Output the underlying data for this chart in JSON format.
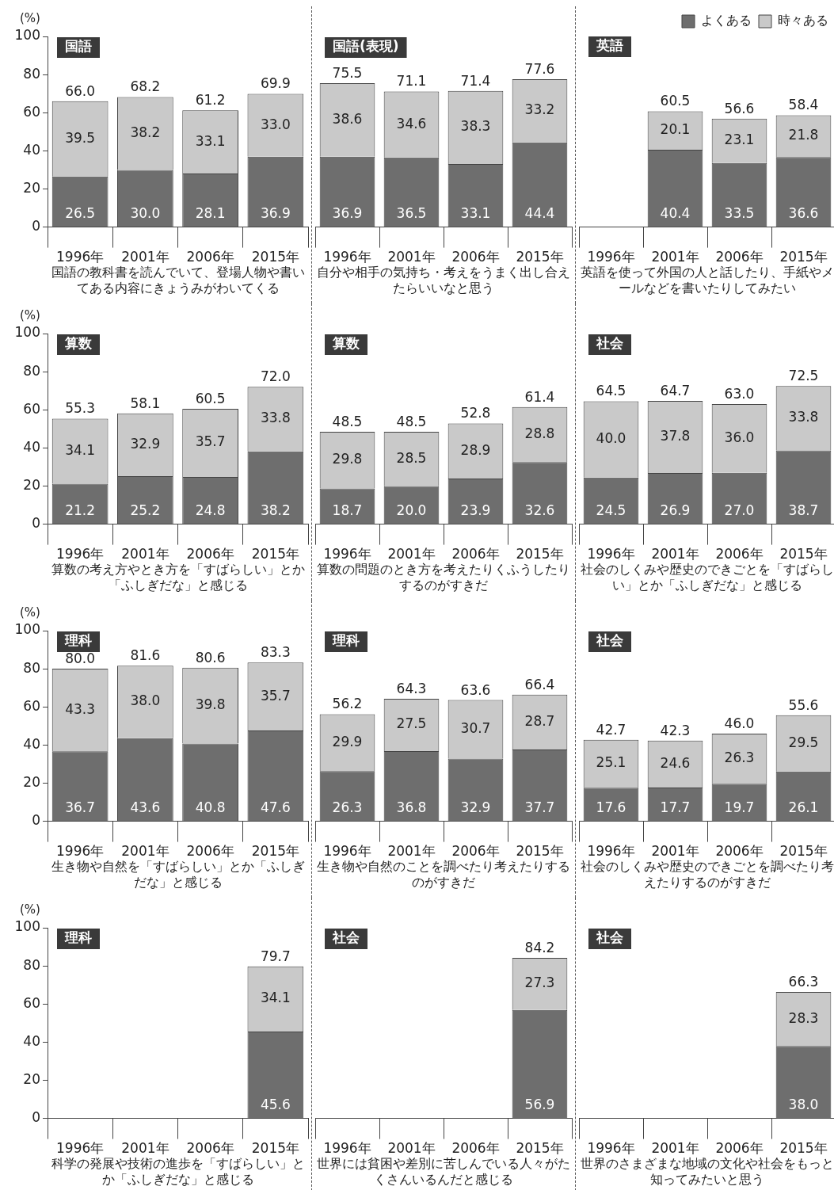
{
  "chart_data": [
    {
      "type": "bar",
      "stacked": true,
      "title": "国語",
      "ylabel": "(%)",
      "xlabel": "国語の教科書を読んでいて、登場人物や書いてある内容にきょうみがわいてくる",
      "categories": [
        "1996年",
        "2001年",
        "2006年",
        "2015年"
      ],
      "ylim": [
        0,
        100
      ],
      "yticks": [
        0,
        20,
        40,
        60,
        80,
        100
      ],
      "totals": [
        "66.0",
        "68.2",
        "61.2",
        "69.9"
      ],
      "series": [
        {
          "color": "#6e6e6e",
          "values": [
            26.5,
            30.0,
            28.1,
            36.9
          ],
          "value_labels": [
            "26.5",
            "30.0",
            "28.1",
            "36.9"
          ]
        },
        {
          "color": "#c9c9c9",
          "values": [
            39.5,
            38.2,
            33.1,
            33.0
          ],
          "value_labels": [
            "39.5",
            "38.2",
            "33.1",
            "33.0"
          ]
        }
      ]
    },
    {
      "type": "bar",
      "stacked": true,
      "title": "国語(表現)",
      "xlabel": "自分や相手の気持ち・考えをうまく出し合えたらいいなと思う",
      "categories": [
        "1996年",
        "2001年",
        "2006年",
        "2015年"
      ],
      "ylim": [
        0,
        100
      ],
      "tick_labels": "x",
      "totals": [
        "75.5",
        "71.1",
        "71.4",
        "77.6"
      ],
      "series": [
        {
          "color": "#6e6e6e",
          "values": [
            36.9,
            36.5,
            33.1,
            44.4
          ],
          "value_labels": [
            "36.9",
            "36.5",
            "33.1",
            "44.4"
          ]
        },
        {
          "color": "#c9c9c9",
          "values": [
            38.6,
            34.6,
            38.3,
            33.2
          ],
          "value_labels": [
            "38.6",
            "34.6",
            "38.3",
            "33.2"
          ]
        }
      ]
    },
    {
      "type": "bar",
      "stacked": true,
      "title": "英語",
      "xlabel": "英語を使って外国の人と話したり、手紙やメールなどを書いたりしてみたい",
      "categories": [
        "1996年",
        "2001年",
        "2006年",
        "2015年"
      ],
      "ylim": [
        0,
        100
      ],
      "tick_labels": "x",
      "legend": "top right",
      "totals": [
        null,
        "60.5",
        "56.6",
        "58.4"
      ],
      "series": [
        {
          "name": "よくある",
          "color": "#6e6e6e",
          "values": [
            null,
            40.4,
            33.5,
            36.6
          ],
          "value_labels": [
            null,
            "40.4",
            "33.5",
            "36.6"
          ]
        },
        {
          "name": "時々ある",
          "color": "#c9c9c9",
          "values": [
            null,
            20.1,
            23.1,
            21.8
          ],
          "value_labels": [
            null,
            "20.1",
            "23.1",
            "21.8"
          ]
        }
      ]
    },
    {
      "type": "bar",
      "stacked": true,
      "title": "算数",
      "ylabel": "(%)",
      "xlabel": "算数の考え方やとき方を「すばらしい」とか「ふしぎだな」と感じる",
      "categories": [
        "1996年",
        "2001年",
        "2006年",
        "2015年"
      ],
      "ylim": [
        0,
        100
      ],
      "yticks": [
        0,
        20,
        40,
        60,
        80,
        100
      ],
      "totals": [
        "55.3",
        "58.1",
        "60.5",
        "72.0"
      ],
      "series": [
        {
          "color": "#6e6e6e",
          "values": [
            21.2,
            25.2,
            24.8,
            38.2
          ],
          "value_labels": [
            "21.2",
            "25.2",
            "24.8",
            "38.2"
          ]
        },
        {
          "color": "#c9c9c9",
          "values": [
            34.1,
            32.9,
            35.7,
            33.8
          ],
          "value_labels": [
            "34.1",
            "32.9",
            "35.7",
            "33.8"
          ]
        }
      ]
    },
    {
      "type": "bar",
      "stacked": true,
      "title": "算数",
      "xlabel": "算数の問題のとき方を考えたりくふうしたりするのがすきだ",
      "categories": [
        "1996年",
        "2001年",
        "2006年",
        "2015年"
      ],
      "ylim": [
        0,
        100
      ],
      "tick_labels": "x",
      "totals": [
        "48.5",
        "48.5",
        "52.8",
        "61.4"
      ],
      "series": [
        {
          "color": "#6e6e6e",
          "values": [
            18.7,
            20.0,
            23.9,
            32.6
          ],
          "value_labels": [
            "18.7",
            "20.0",
            "23.9",
            "32.6"
          ]
        },
        {
          "color": "#c9c9c9",
          "values": [
            29.8,
            28.5,
            28.9,
            28.8
          ],
          "value_labels": [
            "29.8",
            "28.5",
            "28.9",
            "28.8"
          ]
        }
      ]
    },
    {
      "type": "bar",
      "stacked": true,
      "title": "社会",
      "xlabel": "社会のしくみや歴史のできごとを「すばらしい」とか「ふしぎだな」と感じる",
      "categories": [
        "1996年",
        "2001年",
        "2006年",
        "2015年"
      ],
      "ylim": [
        0,
        100
      ],
      "tick_labels": "x",
      "totals": [
        "64.5",
        "64.7",
        "63.0",
        "72.5"
      ],
      "series": [
        {
          "color": "#6e6e6e",
          "values": [
            24.5,
            26.9,
            27.0,
            38.7
          ],
          "value_labels": [
            "24.5",
            "26.9",
            "27.0",
            "38.7"
          ]
        },
        {
          "color": "#c9c9c9",
          "values": [
            40.0,
            37.8,
            36.0,
            33.8
          ],
          "value_labels": [
            "40.0",
            "37.8",
            "36.0",
            "33.8"
          ]
        }
      ]
    },
    {
      "type": "bar",
      "stacked": true,
      "title": "理科",
      "ylabel": "(%)",
      "xlabel": "生き物や自然を「すばらしい」とか「ふしぎだな」と感じる",
      "categories": [
        "1996年",
        "2001年",
        "2006年",
        "2015年"
      ],
      "ylim": [
        0,
        100
      ],
      "yticks": [
        0,
        20,
        40,
        60,
        80,
        100
      ],
      "totals": [
        "80.0",
        "81.6",
        "80.6",
        "83.3"
      ],
      "series": [
        {
          "color": "#6e6e6e",
          "values": [
            36.7,
            43.6,
            40.8,
            47.6
          ],
          "value_labels": [
            "36.7",
            "43.6",
            "40.8",
            "47.6"
          ]
        },
        {
          "color": "#c9c9c9",
          "values": [
            43.3,
            38.0,
            39.8,
            35.7
          ],
          "value_labels": [
            "43.3",
            "38.0",
            "39.8",
            "35.7"
          ]
        }
      ]
    },
    {
      "type": "bar",
      "stacked": true,
      "title": "理科",
      "xlabel": "生き物や自然のことを調べたり考えたりするのがすきだ",
      "categories": [
        "1996年",
        "2001年",
        "2006年",
        "2015年"
      ],
      "ylim": [
        0,
        100
      ],
      "tick_labels": "x",
      "totals": [
        "56.2",
        "64.3",
        "63.6",
        "66.4"
      ],
      "series": [
        {
          "color": "#6e6e6e",
          "values": [
            26.3,
            36.8,
            32.9,
            37.7
          ],
          "value_labels": [
            "26.3",
            "36.8",
            "32.9",
            "37.7"
          ]
        },
        {
          "color": "#c9c9c9",
          "values": [
            29.9,
            27.5,
            30.7,
            28.7
          ],
          "value_labels": [
            "29.9",
            "27.5",
            "30.7",
            "28.7"
          ]
        }
      ]
    },
    {
      "type": "bar",
      "stacked": true,
      "title": "社会",
      "xlabel": "社会のしくみや歴史のできごとを調べたり考えたりするのがすきだ",
      "categories": [
        "1996年",
        "2001年",
        "2006年",
        "2015年"
      ],
      "ylim": [
        0,
        100
      ],
      "tick_labels": "x",
      "totals": [
        "42.7",
        "42.3",
        "46.0",
        "55.6"
      ],
      "series": [
        {
          "color": "#6e6e6e",
          "values": [
            17.6,
            17.7,
            19.7,
            26.1
          ],
          "value_labels": [
            "17.6",
            "17.7",
            "19.7",
            "26.1"
          ]
        },
        {
          "color": "#c9c9c9",
          "values": [
            25.1,
            24.6,
            26.3,
            29.5
          ],
          "value_labels": [
            "25.1",
            "24.6",
            "26.3",
            "29.5"
          ]
        }
      ]
    },
    {
      "type": "bar",
      "stacked": true,
      "title": "理科",
      "ylabel": "(%)",
      "xlabel": "科学の発展や技術の進歩を「すばらしい」とか「ふしぎだな」と感じる",
      "categories": [
        "1996年",
        "2001年",
        "2006年",
        "2015年"
      ],
      "ylim": [
        0,
        100
      ],
      "yticks": [
        0,
        20,
        40,
        60,
        80,
        100
      ],
      "totals": [
        null,
        null,
        null,
        "79.7"
      ],
      "series": [
        {
          "color": "#6e6e6e",
          "values": [
            null,
            null,
            null,
            45.6
          ],
          "value_labels": [
            null,
            null,
            null,
            "45.6"
          ]
        },
        {
          "color": "#c9c9c9",
          "values": [
            null,
            null,
            null,
            34.1
          ],
          "value_labels": [
            null,
            null,
            null,
            "34.1"
          ]
        }
      ]
    },
    {
      "type": "bar",
      "stacked": true,
      "title": "社会",
      "xlabel": "世界には貧困や差別に苦しんでいる人々がたくさんいるんだと感じる",
      "categories": [
        "1996年",
        "2001年",
        "2006年",
        "2015年"
      ],
      "ylim": [
        0,
        100
      ],
      "tick_labels": "x",
      "totals": [
        null,
        null,
        null,
        "84.2"
      ],
      "series": [
        {
          "color": "#6e6e6e",
          "values": [
            null,
            null,
            null,
            56.9
          ],
          "value_labels": [
            null,
            null,
            null,
            "56.9"
          ]
        },
        {
          "color": "#c9c9c9",
          "values": [
            null,
            null,
            null,
            27.3
          ],
          "value_labels": [
            null,
            null,
            null,
            "27.3"
          ]
        }
      ]
    },
    {
      "type": "bar",
      "stacked": true,
      "title": "社会",
      "xlabel": "世界のさまざまな地域の文化や社会をもっと知ってみたいと思う",
      "categories": [
        "1996年",
        "2001年",
        "2006年",
        "2015年"
      ],
      "ylim": [
        0,
        100
      ],
      "tick_labels": "x",
      "totals": [
        null,
        null,
        null,
        "66.3"
      ],
      "series": [
        {
          "color": "#6e6e6e",
          "values": [
            null,
            null,
            null,
            38.0
          ],
          "value_labels": [
            null,
            null,
            null,
            "38.0"
          ]
        },
        {
          "color": "#c9c9c9",
          "values": [
            null,
            null,
            null,
            28.3
          ],
          "value_labels": [
            null,
            null,
            null,
            "28.3"
          ]
        }
      ]
    }
  ]
}
